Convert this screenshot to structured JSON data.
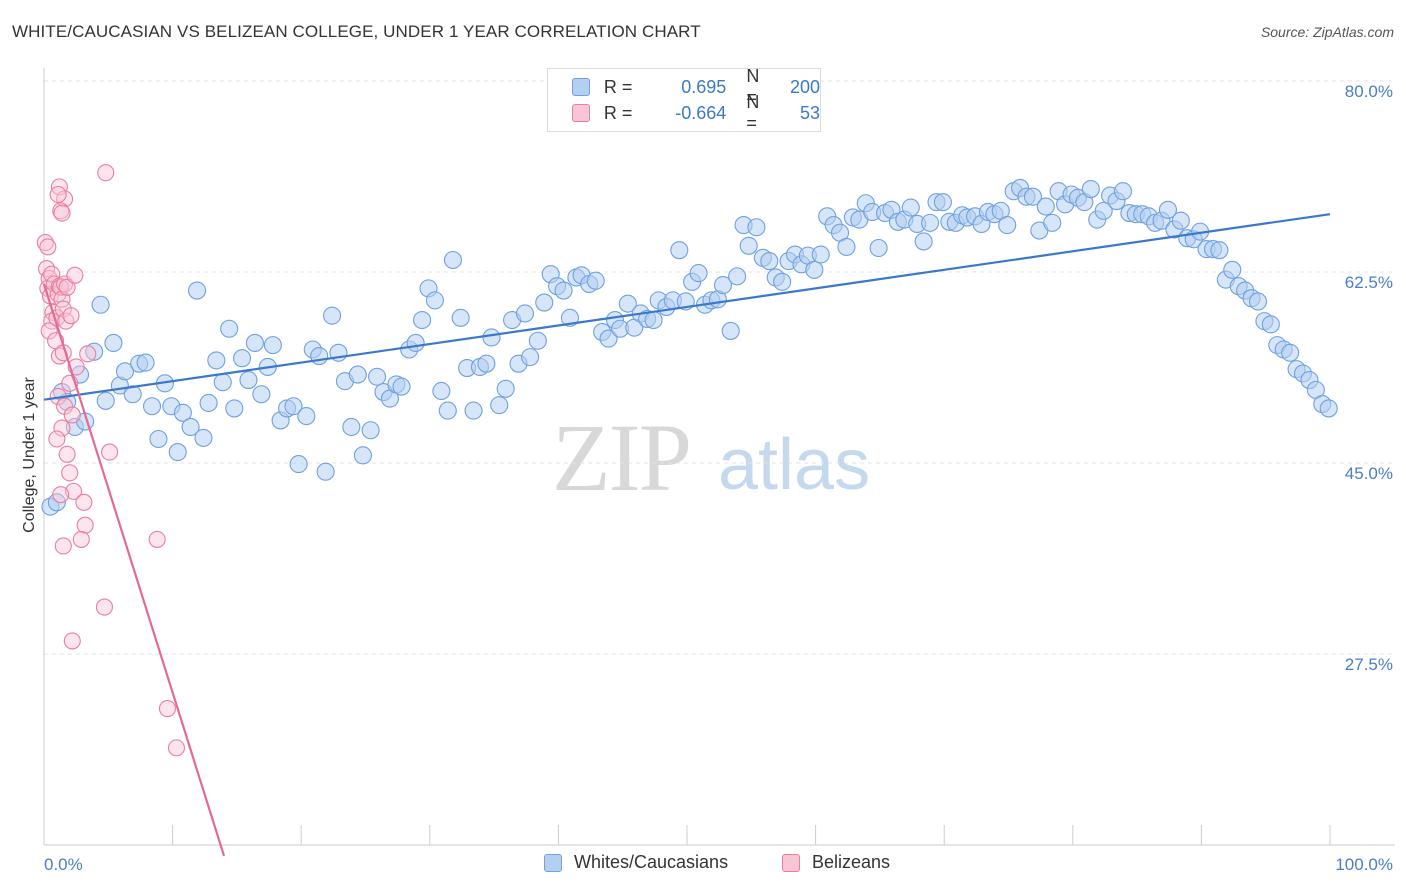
{
  "header": {
    "title": "WHITE/CAUCASIAN VS BELIZEAN COLLEGE, UNDER 1 YEAR CORRELATION CHART",
    "source": "Source: ZipAtlas.com"
  },
  "watermark": {
    "zip": "ZIP",
    "atlas": "atlas"
  },
  "legend": {
    "rows": [
      {
        "r_label": "R =",
        "r_value": "0.695",
        "n_label": "N =",
        "n_value": "200",
        "color": "#a9c7ec"
      },
      {
        "r_label": "R =",
        "r_value": "-0.664",
        "n_label": "N =",
        "n_value": "53",
        "color": "#f6b8c9"
      }
    ]
  },
  "bottom_legend": {
    "items": [
      {
        "label": "Whites/Caucasians",
        "color": "#a9c7ec"
      },
      {
        "label": "Belizeans",
        "color": "#f6b8c9"
      }
    ]
  },
  "chart_data": {
    "type": "scatter",
    "title": "WHITE/CAUCASIAN VS BELIZEAN COLLEGE, UNDER 1 YEAR CORRELATION CHART",
    "xlabel": "",
    "ylabel": "College, Under 1 year",
    "xlim": [
      0,
      100
    ],
    "ylim": [
      9,
      82
    ],
    "x_tick_labels": [
      "0.0%",
      "100.0%"
    ],
    "y_ticks": [
      27.5,
      45.0,
      62.5,
      80.0
    ],
    "y_tick_labels": [
      "27.5%",
      "45.0%",
      "62.5%",
      "80.0%"
    ],
    "grid": "horizontal dashed",
    "legend_position": "top-center",
    "colors": {
      "blue": "#6fa1df",
      "blue_fill": "#b5cff0",
      "blue_line": "#3a78cc",
      "pink": "#ea7ea0",
      "pink_fill": "#f8c5d4",
      "pink_line": "#e46a95"
    },
    "series": [
      {
        "name": "Whites/Caucasians",
        "trend": {
          "x": [
            0,
            100
          ],
          "y": [
            50.8,
            67.8
          ]
        },
        "points": [
          [
            0.5,
            41.0
          ],
          [
            1.0,
            41.4
          ],
          [
            1.4,
            51.5
          ],
          [
            1.8,
            50.6
          ],
          [
            2.4,
            48.3
          ],
          [
            2.8,
            53.1
          ],
          [
            3.2,
            48.8
          ],
          [
            3.9,
            55.2
          ],
          [
            4.4,
            59.5
          ],
          [
            4.8,
            50.7
          ],
          [
            5.4,
            56.0
          ],
          [
            5.9,
            52.1
          ],
          [
            6.3,
            53.4
          ],
          [
            6.9,
            51.3
          ],
          [
            7.4,
            54.1
          ],
          [
            7.9,
            54.2
          ],
          [
            8.4,
            50.2
          ],
          [
            8.9,
            47.2
          ],
          [
            9.4,
            52.3
          ],
          [
            9.9,
            50.2
          ],
          [
            10.4,
            46.0
          ],
          [
            10.8,
            49.6
          ],
          [
            11.4,
            48.3
          ],
          [
            11.9,
            60.8
          ],
          [
            12.4,
            47.3
          ],
          [
            12.8,
            50.5
          ],
          [
            13.4,
            54.4
          ],
          [
            13.9,
            52.4
          ],
          [
            14.4,
            57.3
          ],
          [
            14.8,
            50.0
          ],
          [
            15.4,
            54.6
          ],
          [
            15.9,
            52.6
          ],
          [
            16.4,
            56.0
          ],
          [
            16.9,
            51.3
          ],
          [
            17.4,
            53.8
          ],
          [
            17.8,
            55.8
          ],
          [
            18.4,
            48.9
          ],
          [
            18.9,
            50.0
          ],
          [
            19.4,
            50.2
          ],
          [
            19.8,
            44.9
          ],
          [
            20.4,
            49.3
          ],
          [
            20.9,
            55.4
          ],
          [
            21.4,
            54.8
          ],
          [
            21.9,
            44.2
          ],
          [
            22.4,
            58.5
          ],
          [
            22.9,
            55.1
          ],
          [
            23.4,
            52.5
          ],
          [
            23.9,
            48.3
          ],
          [
            24.4,
            53.1
          ],
          [
            24.8,
            45.7
          ],
          [
            25.4,
            48.0
          ],
          [
            25.9,
            52.9
          ],
          [
            26.4,
            51.5
          ],
          [
            26.9,
            50.9
          ],
          [
            27.4,
            52.2
          ],
          [
            27.8,
            52.0
          ],
          [
            28.4,
            55.4
          ],
          [
            28.9,
            56.0
          ],
          [
            29.4,
            58.1
          ],
          [
            29.9,
            61.0
          ],
          [
            30.4,
            59.9
          ],
          [
            30.9,
            51.6
          ],
          [
            31.4,
            49.8
          ],
          [
            31.8,
            63.6
          ],
          [
            32.4,
            58.3
          ],
          [
            32.9,
            53.7
          ],
          [
            33.4,
            49.8
          ],
          [
            33.9,
            53.8
          ],
          [
            34.4,
            54.1
          ],
          [
            34.8,
            56.5
          ],
          [
            35.4,
            50.3
          ],
          [
            35.9,
            51.8
          ],
          [
            36.4,
            58.1
          ],
          [
            36.9,
            54.1
          ],
          [
            37.4,
            58.7
          ],
          [
            37.8,
            54.7
          ],
          [
            38.4,
            56.2
          ],
          [
            38.9,
            59.7
          ],
          [
            39.4,
            62.3
          ],
          [
            39.9,
            61.2
          ],
          [
            40.4,
            60.8
          ],
          [
            40.9,
            58.3
          ],
          [
            41.4,
            62.0
          ],
          [
            41.8,
            62.2
          ],
          [
            42.4,
            61.4
          ],
          [
            42.9,
            61.7
          ],
          [
            43.4,
            57.0
          ],
          [
            43.9,
            56.4
          ],
          [
            44.4,
            58.1
          ],
          [
            44.8,
            57.3
          ],
          [
            45.4,
            59.6
          ],
          [
            45.9,
            57.4
          ],
          [
            46.4,
            58.7
          ],
          [
            46.9,
            58.2
          ],
          [
            47.4,
            58.1
          ],
          [
            47.8,
            59.9
          ],
          [
            48.4,
            59.3
          ],
          [
            48.9,
            59.9
          ],
          [
            49.4,
            64.5
          ],
          [
            49.9,
            59.8
          ],
          [
            50.4,
            61.6
          ],
          [
            50.9,
            62.4
          ],
          [
            51.4,
            59.5
          ],
          [
            51.9,
            59.9
          ],
          [
            52.4,
            60.0
          ],
          [
            52.8,
            61.3
          ],
          [
            53.4,
            57.1
          ],
          [
            53.9,
            62.1
          ],
          [
            54.4,
            66.8
          ],
          [
            54.8,
            64.9
          ],
          [
            55.4,
            66.6
          ],
          [
            55.9,
            63.8
          ],
          [
            56.4,
            63.5
          ],
          [
            56.9,
            62.0
          ],
          [
            57.4,
            61.6
          ],
          [
            57.9,
            63.5
          ],
          [
            58.4,
            64.1
          ],
          [
            58.9,
            63.2
          ],
          [
            59.4,
            64.0
          ],
          [
            59.9,
            62.7
          ],
          [
            60.4,
            64.1
          ],
          [
            60.9,
            67.6
          ],
          [
            61.4,
            66.8
          ],
          [
            61.9,
            66.1
          ],
          [
            62.4,
            64.8
          ],
          [
            62.9,
            67.5
          ],
          [
            63.4,
            67.3
          ],
          [
            63.9,
            68.8
          ],
          [
            64.4,
            68.0
          ],
          [
            64.9,
            64.7
          ],
          [
            65.4,
            67.9
          ],
          [
            65.9,
            68.2
          ],
          [
            66.4,
            67.1
          ],
          [
            66.9,
            67.3
          ],
          [
            67.4,
            68.4
          ],
          [
            67.9,
            66.9
          ],
          [
            68.4,
            65.3
          ],
          [
            68.9,
            67.0
          ],
          [
            69.4,
            68.9
          ],
          [
            69.9,
            68.9
          ],
          [
            70.4,
            67.1
          ],
          [
            70.9,
            67.0
          ],
          [
            71.4,
            67.7
          ],
          [
            71.8,
            67.5
          ],
          [
            72.4,
            67.6
          ],
          [
            72.9,
            66.9
          ],
          [
            73.4,
            68.0
          ],
          [
            73.9,
            67.8
          ],
          [
            74.4,
            68.1
          ],
          [
            74.9,
            66.8
          ],
          [
            75.4,
            69.9
          ],
          [
            75.9,
            70.2
          ],
          [
            76.4,
            69.4
          ],
          [
            76.9,
            69.4
          ],
          [
            77.4,
            66.3
          ],
          [
            77.9,
            68.5
          ],
          [
            78.4,
            67.0
          ],
          [
            78.9,
            69.9
          ],
          [
            79.4,
            68.7
          ],
          [
            79.9,
            69.6
          ],
          [
            80.4,
            69.3
          ],
          [
            80.9,
            68.9
          ],
          [
            81.4,
            70.1
          ],
          [
            81.9,
            67.3
          ],
          [
            82.4,
            68.1
          ],
          [
            82.9,
            69.5
          ],
          [
            83.4,
            69.0
          ],
          [
            83.9,
            69.9
          ],
          [
            84.4,
            67.9
          ],
          [
            84.9,
            67.8
          ],
          [
            85.4,
            67.8
          ],
          [
            85.9,
            67.6
          ],
          [
            86.4,
            67.0
          ],
          [
            86.9,
            67.2
          ],
          [
            87.4,
            68.2
          ],
          [
            87.9,
            66.4
          ],
          [
            88.4,
            67.2
          ],
          [
            88.9,
            65.6
          ],
          [
            89.4,
            65.5
          ],
          [
            89.9,
            66.2
          ],
          [
            90.4,
            64.6
          ],
          [
            90.9,
            64.6
          ],
          [
            91.4,
            64.5
          ],
          [
            91.9,
            61.8
          ],
          [
            92.4,
            62.7
          ],
          [
            92.9,
            61.2
          ],
          [
            93.4,
            60.8
          ],
          [
            93.9,
            60.1
          ],
          [
            94.4,
            59.8
          ],
          [
            94.9,
            58.0
          ],
          [
            95.4,
            57.7
          ],
          [
            95.9,
            55.8
          ],
          [
            96.4,
            55.4
          ],
          [
            96.9,
            55.1
          ],
          [
            97.4,
            53.6
          ],
          [
            97.9,
            53.2
          ],
          [
            98.4,
            52.6
          ],
          [
            98.9,
            51.7
          ],
          [
            99.4,
            50.4
          ],
          [
            99.9,
            50.0
          ]
        ]
      },
      {
        "name": "Belizeans",
        "trend": {
          "x": [
            0,
            14.0
          ],
          "y": [
            61.4,
            9.0
          ]
        },
        "points": [
          [
            0.1,
            65.2
          ],
          [
            0.3,
            64.8
          ],
          [
            0.2,
            62.8
          ],
          [
            0.4,
            61.9
          ],
          [
            0.3,
            61.0
          ],
          [
            0.6,
            62.3
          ],
          [
            0.8,
            61.4
          ],
          [
            0.5,
            60.3
          ],
          [
            0.7,
            58.8
          ],
          [
            0.6,
            58.0
          ],
          [
            0.4,
            57.1
          ],
          [
            0.9,
            56.2
          ],
          [
            1.0,
            58.3
          ],
          [
            1.1,
            60.5
          ],
          [
            1.2,
            61.2
          ],
          [
            1.3,
            61.1
          ],
          [
            1.4,
            60.0
          ],
          [
            1.6,
            61.4
          ],
          [
            1.8,
            61.1
          ],
          [
            1.5,
            59.1
          ],
          [
            1.7,
            58.0
          ],
          [
            2.1,
            58.5
          ],
          [
            2.4,
            62.2
          ],
          [
            1.2,
            54.8
          ],
          [
            1.5,
            55.1
          ],
          [
            2.0,
            52.3
          ],
          [
            2.5,
            53.8
          ],
          [
            1.1,
            51.1
          ],
          [
            1.6,
            50.2
          ],
          [
            2.2,
            49.4
          ],
          [
            1.4,
            48.2
          ],
          [
            1.0,
            47.2
          ],
          [
            1.8,
            45.8
          ],
          [
            2.0,
            44.1
          ],
          [
            2.3,
            42.4
          ],
          [
            1.3,
            42.1
          ],
          [
            3.1,
            41.4
          ],
          [
            3.2,
            39.3
          ],
          [
            2.9,
            38.0
          ],
          [
            1.5,
            37.4
          ],
          [
            1.2,
            70.3
          ],
          [
            1.6,
            69.2
          ],
          [
            1.3,
            68.1
          ],
          [
            1.1,
            69.6
          ],
          [
            1.4,
            67.9
          ],
          [
            4.8,
            71.6
          ],
          [
            5.1,
            46.0
          ],
          [
            4.7,
            31.8
          ],
          [
            2.2,
            28.7
          ],
          [
            8.8,
            38.0
          ],
          [
            9.6,
            22.5
          ],
          [
            10.3,
            18.9
          ],
          [
            3.4,
            55.0
          ]
        ]
      }
    ]
  }
}
